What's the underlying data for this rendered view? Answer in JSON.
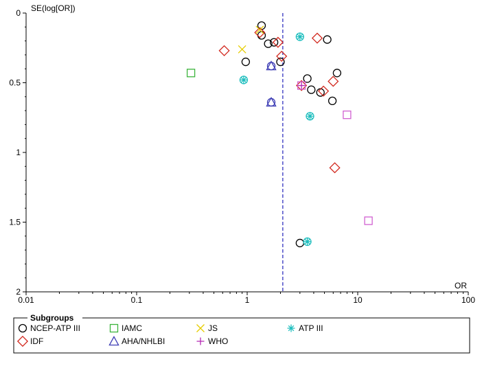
{
  "chart_data": {
    "type": "scatter",
    "xlabel": "OR",
    "ylabel": "SE(log[OR])",
    "x_scale": "log",
    "xlim": [
      0.01,
      100
    ],
    "ylim": [
      0,
      2
    ],
    "y_inverted": true,
    "x_ticks": [
      0.01,
      0.1,
      1,
      10,
      100
    ],
    "x_tick_labels": [
      "0.01",
      "0.1",
      "1",
      "10",
      "100"
    ],
    "y_ticks": [
      0,
      0.5,
      1,
      1.5,
      2
    ],
    "y_tick_labels": [
      "0",
      "0.5",
      "1",
      "1.5",
      "2"
    ],
    "pooled_or": 2.1,
    "pooled_line_color": "#2222bb",
    "legend_title": "Subgroups",
    "legend_placement": "bottom",
    "series": [
      {
        "name": "NCEP-ATP III",
        "marker": "circle",
        "color": "#000000",
        "points": [
          {
            "x": 1.35,
            "y": 0.09
          },
          {
            "x": 1.35,
            "y": 0.16
          },
          {
            "x": 1.55,
            "y": 0.22
          },
          {
            "x": 1.75,
            "y": 0.21
          },
          {
            "x": 0.97,
            "y": 0.35
          },
          {
            "x": 2.0,
            "y": 0.35
          },
          {
            "x": 5.3,
            "y": 0.19
          },
          {
            "x": 6.5,
            "y": 0.43
          },
          {
            "x": 3.5,
            "y": 0.47
          },
          {
            "x": 3.8,
            "y": 0.55
          },
          {
            "x": 4.6,
            "y": 0.57
          },
          {
            "x": 5.9,
            "y": 0.63
          },
          {
            "x": 3.0,
            "y": 1.65
          }
        ]
      },
      {
        "name": "IDF",
        "marker": "diamond",
        "color": "#d2281e",
        "points": [
          {
            "x": 1.3,
            "y": 0.14
          },
          {
            "x": 1.9,
            "y": 0.21
          },
          {
            "x": 0.62,
            "y": 0.27
          },
          {
            "x": 2.05,
            "y": 0.31
          },
          {
            "x": 4.3,
            "y": 0.18
          },
          {
            "x": 6.0,
            "y": 0.49
          },
          {
            "x": 4.9,
            "y": 0.56
          },
          {
            "x": 3.1,
            "y": 0.52
          },
          {
            "x": 6.2,
            "y": 1.11
          }
        ]
      },
      {
        "name": "IAMC",
        "marker": "square",
        "color": "#3cb43c",
        "points": [
          {
            "x": 0.31,
            "y": 0.43
          }
        ]
      },
      {
        "name": "AHA/NHLBI",
        "marker": "triangle",
        "color": "#3c3cb4",
        "points": [
          {
            "x": 1.65,
            "y": 0.38
          },
          {
            "x": 1.65,
            "y": 0.64
          }
        ]
      },
      {
        "name": "JS",
        "marker": "x",
        "color": "#e6cd00",
        "points": [
          {
            "x": 1.3,
            "y": 0.12
          },
          {
            "x": 0.9,
            "y": 0.26
          }
        ]
      },
      {
        "name": "WHO",
        "marker": "plus",
        "color": "#b428b4",
        "points": [
          {
            "x": 3.1,
            "y": 0.52
          }
        ]
      },
      {
        "name": "ATP III",
        "marker": "asterisk",
        "color": "#1ebebe",
        "points": [
          {
            "x": 3.0,
            "y": 0.17
          },
          {
            "x": 0.93,
            "y": 0.48
          },
          {
            "x": 3.7,
            "y": 0.74
          },
          {
            "x": 3.5,
            "y": 1.64
          }
        ]
      },
      {
        "name": "",
        "marker": "circle",
        "color": "#3c3cb4",
        "points": [
          {
            "x": 1.65,
            "y": 0.38
          },
          {
            "x": 1.65,
            "y": 0.64
          }
        ]
      },
      {
        "name": "",
        "marker": "circle",
        "color": "#1ebebe",
        "points": [
          {
            "x": 3.0,
            "y": 0.17
          },
          {
            "x": 0.93,
            "y": 0.48
          },
          {
            "x": 3.7,
            "y": 0.74
          },
          {
            "x": 3.5,
            "y": 1.64
          }
        ]
      },
      {
        "name": "",
        "marker": "square",
        "color": "#d060d0",
        "points": [
          {
            "x": 3.1,
            "y": 0.52
          },
          {
            "x": 8.0,
            "y": 0.73
          },
          {
            "x": 12.5,
            "y": 1.49
          }
        ]
      }
    ]
  }
}
